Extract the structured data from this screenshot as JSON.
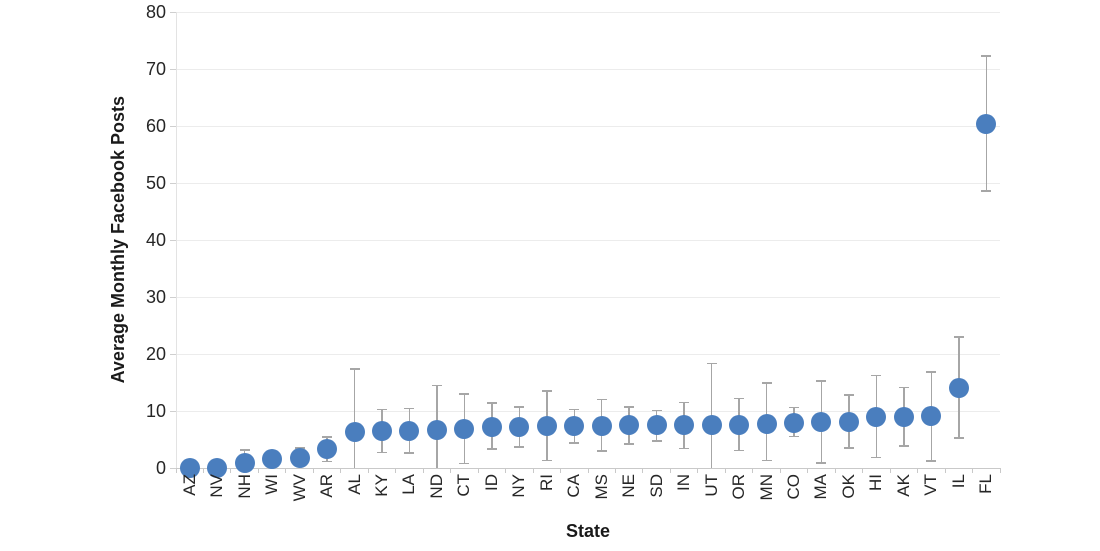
{
  "chart_data": {
    "type": "scatter",
    "title": "",
    "xlabel": "State",
    "ylabel": "Average Monthly Facebook Posts",
    "ylim": [
      0,
      80
    ],
    "yticks": [
      0,
      10,
      20,
      30,
      40,
      50,
      60,
      70,
      80
    ],
    "grid": "horizontal-light",
    "legend": "none",
    "marker_color": "#4a7ebe",
    "error_bar_color": "#a6a6a6",
    "categories": [
      "AZ",
      "NV",
      "NH",
      "WI",
      "WV",
      "AR",
      "AL",
      "KY",
      "LA",
      "ND",
      "CT",
      "ID",
      "NY",
      "RI",
      "CA",
      "MS",
      "NE",
      "SD",
      "IN",
      "UT",
      "OR",
      "MN",
      "CO",
      "MA",
      "OK",
      "HI",
      "AK",
      "VT",
      "IL",
      "FL"
    ],
    "series": [
      {
        "name": "Average Monthly Facebook Posts",
        "values": [
          0,
          0,
          0.9,
          1.5,
          1.7,
          3.3,
          6.4,
          6.5,
          6.5,
          6.6,
          6.8,
          7.2,
          7.2,
          7.3,
          7.4,
          7.4,
          7.5,
          7.5,
          7.5,
          7.5,
          7.6,
          7.8,
          7.9,
          8.0,
          8.0,
          8.9,
          9.0,
          9.1,
          14.0,
          60.4
        ],
        "error_low": [
          null,
          null,
          0,
          null,
          0,
          1.1,
          0,
          2.7,
          2.6,
          0,
          0.8,
          3.3,
          3.7,
          1.3,
          4.4,
          3.0,
          4.2,
          4.7,
          3.4,
          0,
          3.1,
          1.3,
          5.5,
          0.9,
          3.5,
          1.8,
          3.9,
          1.2,
          5.3,
          48.6
        ],
        "error_high": [
          null,
          null,
          3.2,
          null,
          3.5,
          5.4,
          17.4,
          10.3,
          10.4,
          14.5,
          13.0,
          11.4,
          10.7,
          13.5,
          10.3,
          12.0,
          10.7,
          10.1,
          11.5,
          18.3,
          12.2,
          14.9,
          10.6,
          15.3,
          12.8,
          16.2,
          14.1,
          16.8,
          23.0,
          72.3
        ]
      }
    ]
  }
}
